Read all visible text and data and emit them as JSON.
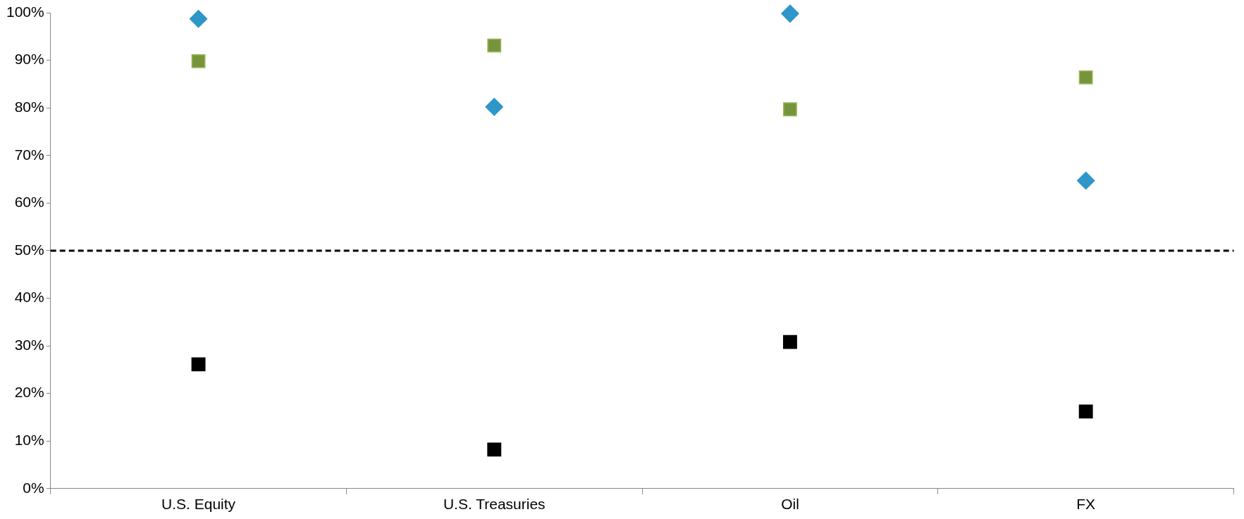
{
  "chart_data": {
    "type": "scatter",
    "categories": [
      "U.S. Equity",
      "U.S. Treasuries",
      "Oil",
      "FX"
    ],
    "series": [
      {
        "color": "#2e96c8",
        "marker": "diamond",
        "values": [
          98.7,
          80.2,
          99.8,
          64.7
        ]
      },
      {
        "color": "#77933c",
        "marker": "square",
        "values": [
          89.8,
          93.1,
          79.7,
          86.4
        ]
      },
      {
        "color": "#000000",
        "marker": "square",
        "values": [
          26.1,
          8.2,
          30.8,
          16.2
        ]
      }
    ],
    "ylim": [
      0,
      100
    ],
    "yticks": [
      {
        "value": 0,
        "label": "0%"
      },
      {
        "value": 10,
        "label": "10%"
      },
      {
        "value": 20,
        "label": "20%"
      },
      {
        "value": 30,
        "label": "30%"
      },
      {
        "value": 40,
        "label": "40%"
      },
      {
        "value": 50,
        "label": "50%"
      },
      {
        "value": 60,
        "label": "60%"
      },
      {
        "value": 70,
        "label": "70%"
      },
      {
        "value": 80,
        "label": "80%"
      },
      {
        "value": 90,
        "label": "90%"
      },
      {
        "value": 100,
        "label": "100%"
      }
    ],
    "ref_lines": [
      {
        "axis": "y",
        "value": 50,
        "color": "#000000",
        "line_style": "dashed"
      }
    ],
    "grid": false,
    "legend": false
  }
}
